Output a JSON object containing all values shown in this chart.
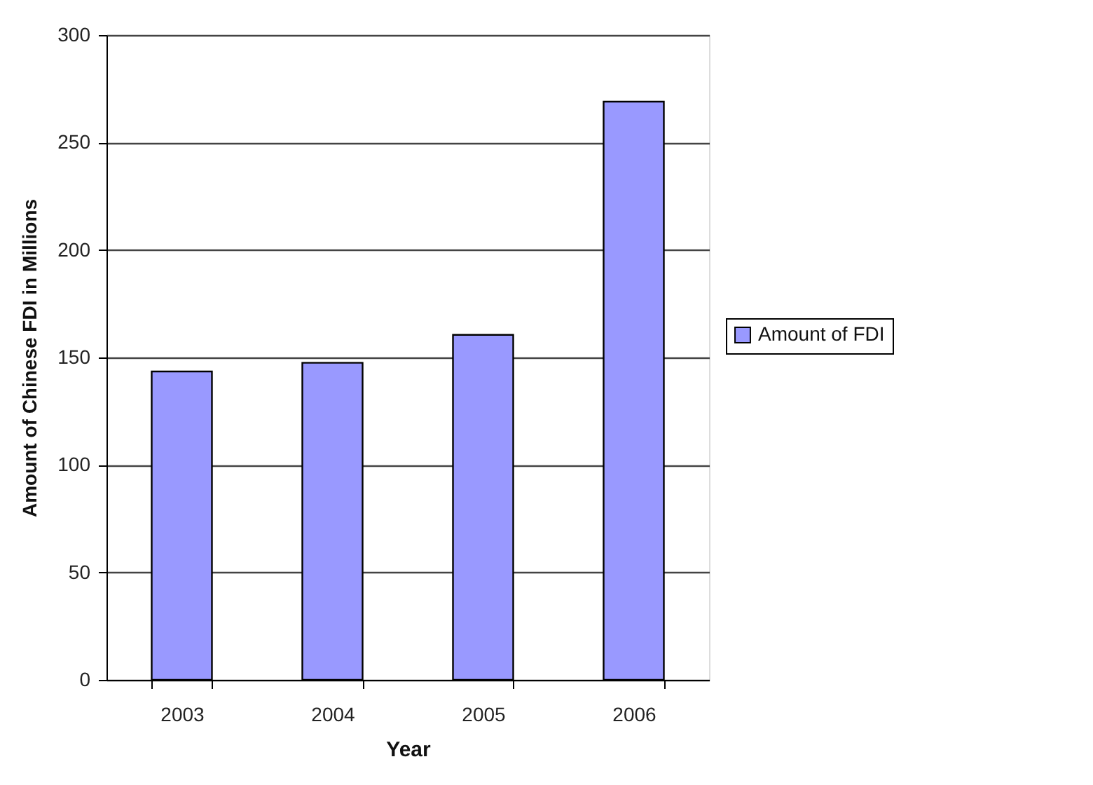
{
  "chart_data": {
    "type": "bar",
    "categories": [
      "2003",
      "2004",
      "2005",
      "2006"
    ],
    "series": [
      {
        "name": "Amount of FDI",
        "color": "#9999ff",
        "values": [
          143.5,
          147.5,
          160.5,
          269
        ]
      }
    ],
    "xlabel": "Year",
    "ylabel": "Amount of Chinese FDI in Millions",
    "ylim": [
      0,
      300
    ],
    "yticks": [
      0,
      50,
      100,
      150,
      200,
      250,
      300
    ],
    "grid": "y",
    "legend": "right"
  }
}
